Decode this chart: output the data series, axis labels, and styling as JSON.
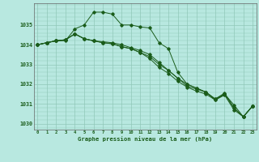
{
  "title": "Graphe pression niveau de la mer (hPa)",
  "background_color": "#b8e8e0",
  "grid_color": "#90c8b8",
  "line_color": "#1a5c1a",
  "x_ticks": [
    0,
    1,
    2,
    3,
    4,
    5,
    6,
    7,
    8,
    9,
    10,
    11,
    12,
    13,
    14,
    15,
    16,
    17,
    18,
    19,
    20,
    21,
    22,
    23
  ],
  "ylim": [
    1029.7,
    1036.1
  ],
  "xlim": [
    -0.4,
    23.4
  ],
  "yticks": [
    1030,
    1031,
    1032,
    1033,
    1034,
    1035
  ],
  "series": [
    [
      1034.0,
      1034.1,
      1034.2,
      1034.2,
      1034.8,
      1035.0,
      1035.65,
      1035.65,
      1035.55,
      1035.0,
      1035.0,
      1034.9,
      1034.85,
      1034.1,
      1033.8,
      1032.6,
      1032.0,
      1031.8,
      1031.6,
      1031.2,
      1031.5,
      1030.95,
      1030.35,
      1030.9
    ],
    [
      1034.0,
      1034.1,
      1034.2,
      1034.25,
      1034.55,
      1034.3,
      1034.2,
      1034.1,
      1034.05,
      1033.9,
      1033.8,
      1033.6,
      1033.4,
      1033.0,
      1032.7,
      1032.3,
      1031.9,
      1031.75,
      1031.6,
      1031.25,
      1031.5,
      1030.8,
      1030.35,
      1030.9
    ],
    [
      1034.0,
      1034.1,
      1034.2,
      1034.25,
      1034.55,
      1034.3,
      1034.2,
      1034.1,
      1034.05,
      1033.9,
      1033.8,
      1033.6,
      1033.3,
      1032.85,
      1032.55,
      1032.15,
      1031.85,
      1031.65,
      1031.5,
      1031.2,
      1031.45,
      1030.7,
      1030.35,
      1030.9
    ],
    [
      1034.0,
      1034.1,
      1034.2,
      1034.25,
      1034.55,
      1034.3,
      1034.2,
      1034.15,
      1034.1,
      1034.0,
      1033.85,
      1033.7,
      1033.5,
      1033.1,
      1032.7,
      1032.3,
      1032.0,
      1031.8,
      1031.6,
      1031.25,
      1031.55,
      1030.8,
      1030.35,
      1030.9
    ]
  ]
}
